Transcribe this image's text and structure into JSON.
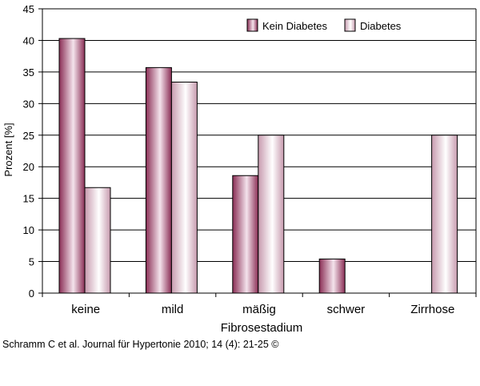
{
  "chart_data": {
    "type": "bar",
    "categories": [
      "keine",
      "mild",
      "mäßig",
      "schwer",
      "Zirrhose"
    ],
    "series": [
      {
        "name": "Kein Diabetes",
        "values": [
          40.3,
          35.7,
          18.6,
          5.4,
          0
        ]
      },
      {
        "name": "Diabetes",
        "values": [
          16.7,
          33.4,
          25.0,
          0,
          25.0
        ]
      }
    ],
    "xlabel": "Fibrosestadium",
    "ylabel": "Prozent [%]",
    "ylim": [
      0,
      45
    ],
    "yticks": [
      "0",
      "5",
      "10",
      "15",
      "20",
      "25",
      "30",
      "35",
      "40",
      "45"
    ],
    "grid": true,
    "legend": "top-right",
    "colors": {
      "kein_diabetes": [
        "#8a2e55",
        "#c77a9c",
        "#f4e3ec"
      ],
      "diabetes": [
        "#c79aae",
        "#f3e6ec",
        "#ffffff"
      ],
      "grid": "#000000"
    }
  },
  "footer": {
    "citation": "Schramm C et al. Journal für Hypertonie 2010; 14 (4): 21-25 ©"
  }
}
